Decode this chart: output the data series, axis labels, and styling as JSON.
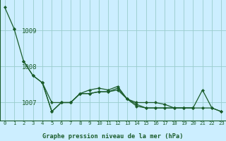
{
  "title": "Graphe pression niveau de la mer (hPa)",
  "background_color": "#cceeff",
  "grid_color": "#99cccc",
  "line_color": "#1a5c2a",
  "xlim": [
    -0.5,
    23.5
  ],
  "ylim": [
    1006.5,
    1009.85
  ],
  "yticks": [
    1007,
    1008,
    1009
  ],
  "xticks": [
    0,
    1,
    2,
    3,
    4,
    5,
    6,
    7,
    8,
    9,
    10,
    11,
    12,
    13,
    14,
    15,
    16,
    17,
    18,
    19,
    20,
    21,
    22,
    23
  ],
  "series": [
    [
      1009.65,
      1009.05,
      null,
      null,
      null,
      null,
      null,
      null,
      null,
      null,
      null,
      null,
      null,
      null,
      null,
      null,
      null,
      null,
      null,
      null,
      null,
      null,
      null,
      null
    ],
    [
      null,
      1009.05,
      1008.15,
      1007.75,
      1007.55,
      1007.0,
      1007.0,
      1007.0,
      1007.25,
      1007.25,
      1007.3,
      1007.3,
      1007.35,
      1007.1,
      1007.0,
      1007.0,
      1007.0,
      1006.95,
      1006.85,
      1006.85,
      1006.85,
      1006.85,
      1006.85,
      1006.75
    ],
    [
      null,
      null,
      1008.15,
      1007.75,
      1007.55,
      1006.75,
      1007.0,
      1007.0,
      1007.25,
      1007.25,
      1007.3,
      1007.3,
      1007.4,
      1007.1,
      1006.9,
      1006.85,
      1006.85,
      1006.85,
      1006.85,
      1006.85,
      1006.85,
      null,
      null,
      null
    ],
    [
      null,
      null,
      null,
      null,
      1007.55,
      1006.75,
      1007.0,
      1007.0,
      1007.25,
      1007.35,
      1007.4,
      1007.35,
      1007.45,
      1007.1,
      1006.95,
      1006.85,
      1006.85,
      1006.85,
      1006.85,
      1006.85,
      1006.85,
      1007.35,
      1006.85,
      1006.75
    ]
  ]
}
